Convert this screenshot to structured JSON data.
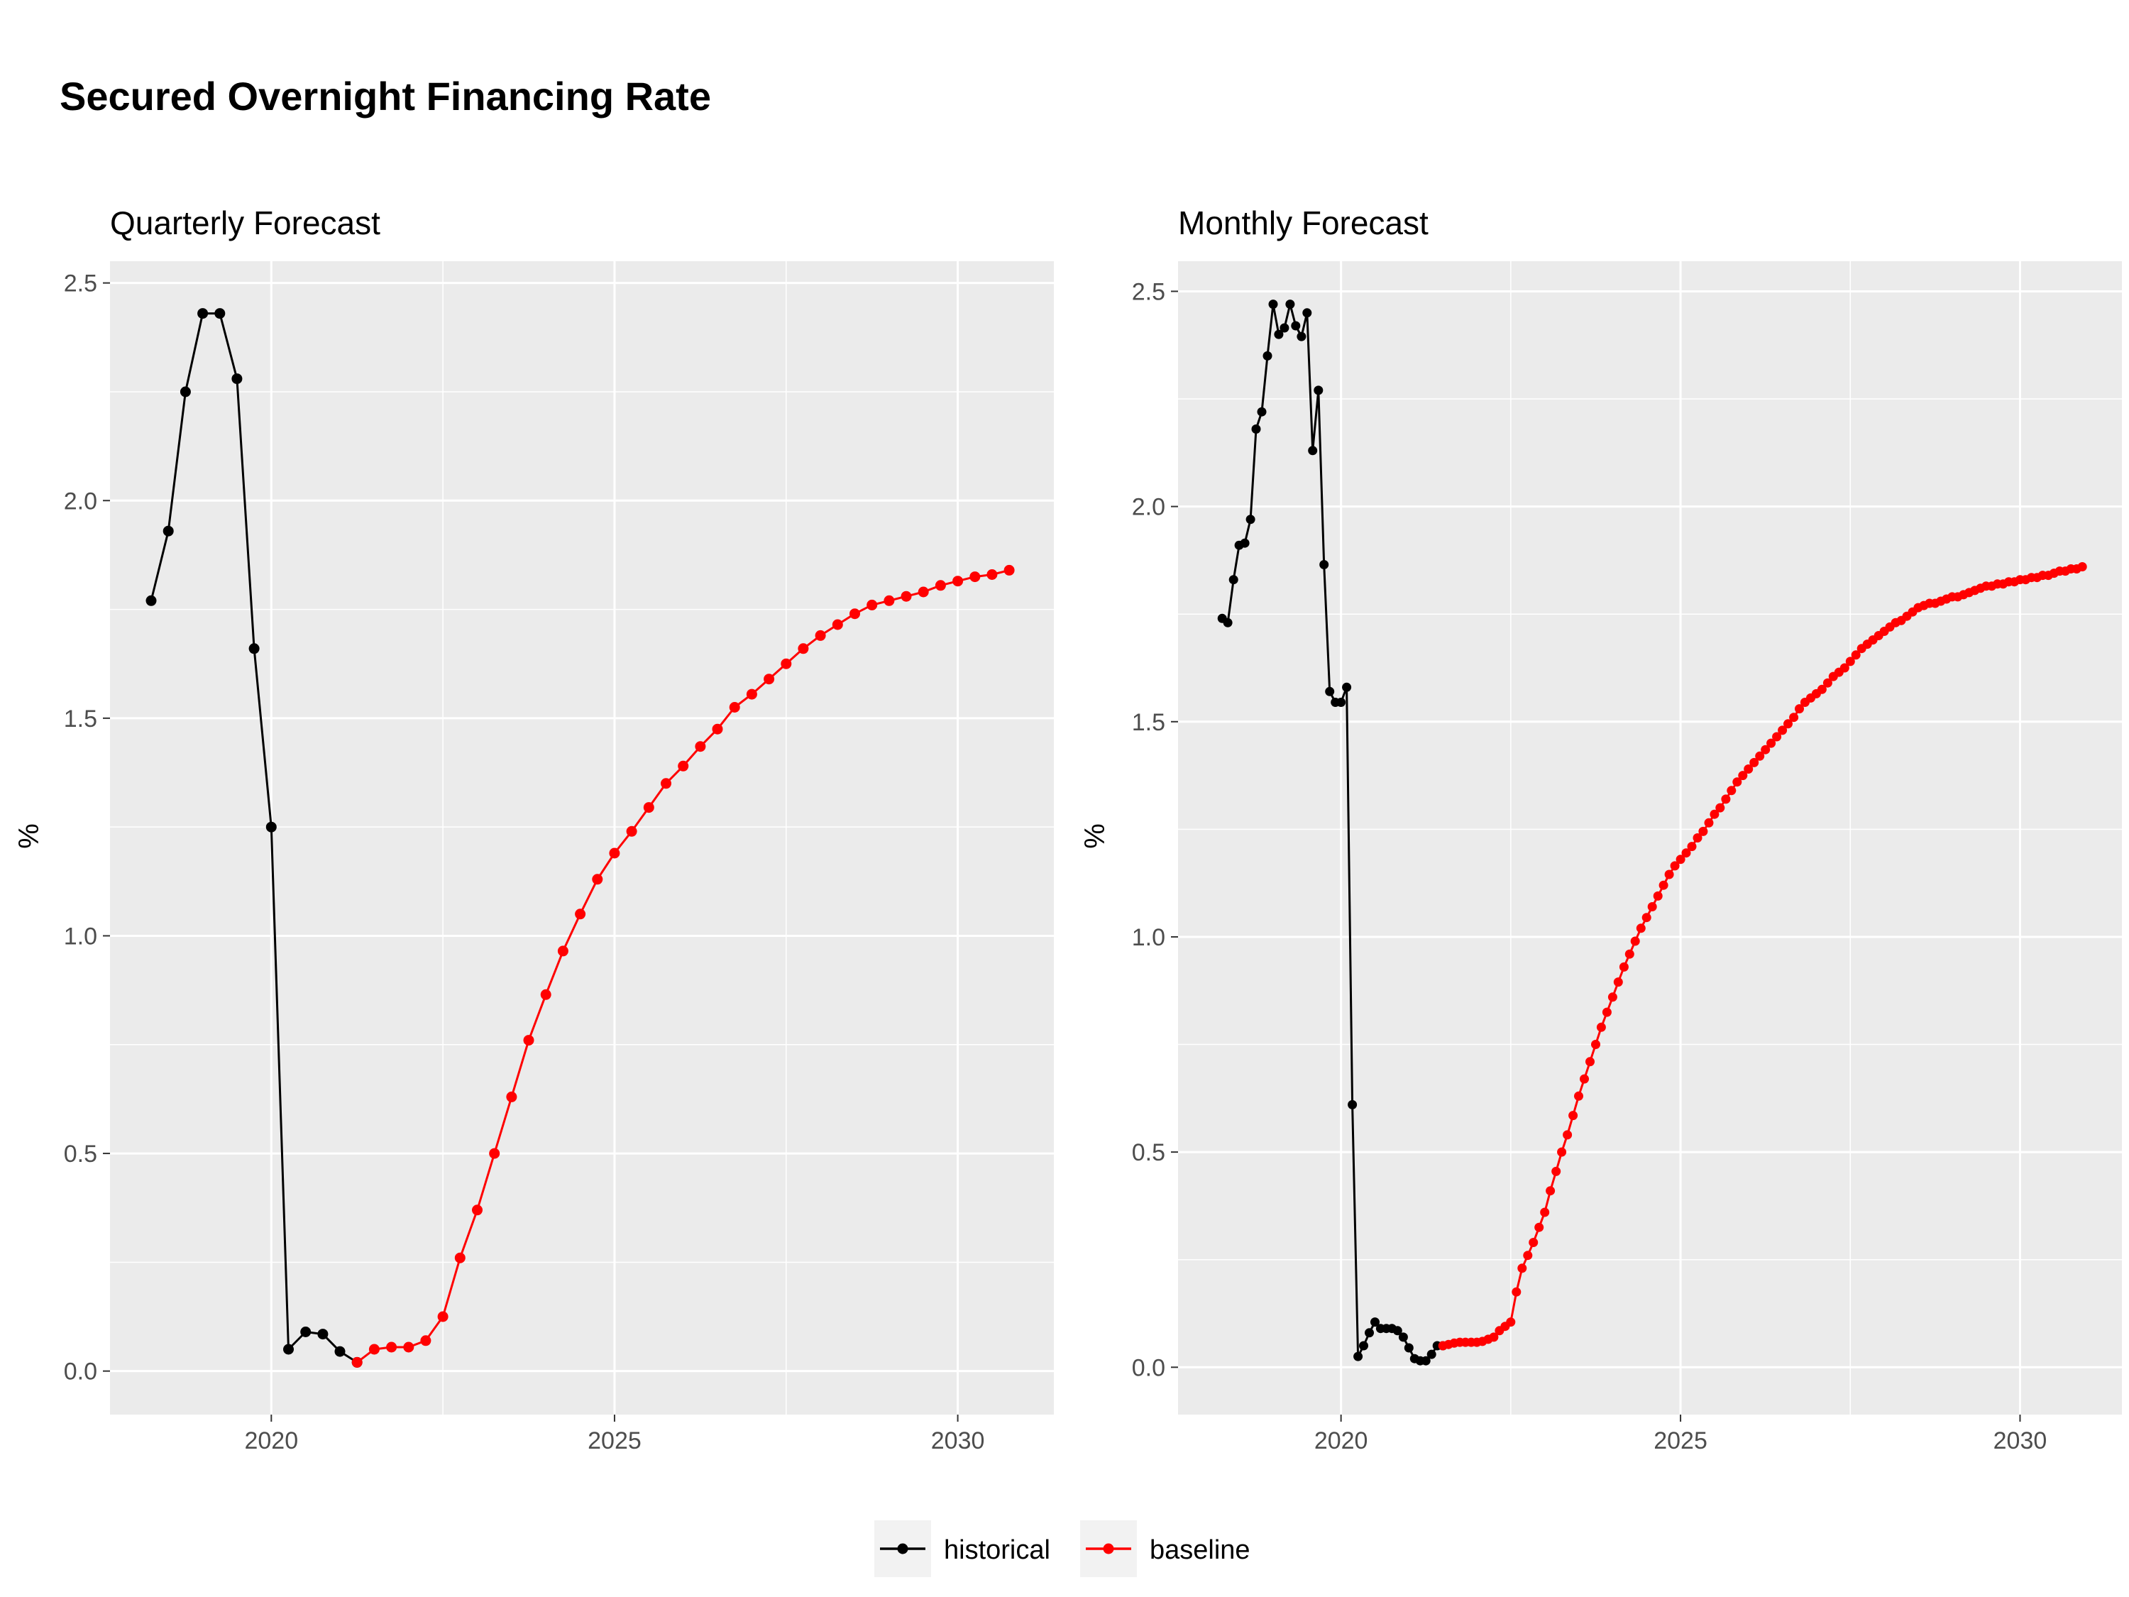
{
  "title": "Secured Overnight Financing Rate",
  "legend": [
    {
      "label": "historical",
      "color": "#000000"
    },
    {
      "label": "baseline",
      "color": "#ff0000"
    }
  ],
  "chart_data": [
    {
      "type": "line",
      "title": "Quarterly Forecast",
      "ylabel": "%",
      "xlabel": "",
      "xlim": [
        2017.65,
        2031.4
      ],
      "ylim": [
        -0.1,
        2.55
      ],
      "xticks": [
        2020,
        2025,
        2030
      ],
      "yticks": [
        0.0,
        0.5,
        1.0,
        1.5,
        2.0,
        2.5
      ],
      "ytick_labels": [
        "0.0",
        "0.5",
        "1.0",
        "1.5",
        "2.0",
        "2.5"
      ],
      "grid": true,
      "legend_position": "bottom",
      "series": [
        {
          "name": "historical",
          "color": "#000000",
          "x": [
            2018.25,
            2018.5,
            2018.75,
            2019.0,
            2019.25,
            2019.5,
            2019.75,
            2020.0,
            2020.25,
            2020.5,
            2020.75,
            2021.0,
            2021.25
          ],
          "y": [
            1.77,
            1.93,
            2.25,
            2.43,
            2.43,
            2.28,
            1.66,
            1.25,
            0.05,
            0.09,
            0.085,
            0.045,
            0.02
          ]
        },
        {
          "name": "baseline",
          "color": "#ff0000",
          "x": [
            2021.25,
            2021.5,
            2021.75,
            2022.0,
            2022.25,
            2022.5,
            2022.75,
            2023.0,
            2023.25,
            2023.5,
            2023.75,
            2024.0,
            2024.25,
            2024.5,
            2024.75,
            2025.0,
            2025.25,
            2025.5,
            2025.75,
            2026.0,
            2026.25,
            2026.5,
            2026.75,
            2027.0,
            2027.25,
            2027.5,
            2027.75,
            2028.0,
            2028.25,
            2028.5,
            2028.75,
            2029.0,
            2029.25,
            2029.5,
            2029.75,
            2030.0,
            2030.25,
            2030.5,
            2030.75
          ],
          "y": [
            0.02,
            0.05,
            0.055,
            0.055,
            0.07,
            0.125,
            0.26,
            0.37,
            0.5,
            0.63,
            0.76,
            0.865,
            0.965,
            1.05,
            1.13,
            1.19,
            1.24,
            1.295,
            1.35,
            1.39,
            1.435,
            1.475,
            1.525,
            1.555,
            1.59,
            1.625,
            1.66,
            1.69,
            1.715,
            1.74,
            1.76,
            1.77,
            1.78,
            1.79,
            1.805,
            1.815,
            1.825,
            1.83,
            1.84
          ]
        }
      ]
    },
    {
      "type": "line",
      "title": "Monthly Forecast",
      "ylabel": "%",
      "xlabel": "",
      "xlim": [
        2017.6,
        2031.5
      ],
      "ylim": [
        -0.11,
        2.57
      ],
      "xticks": [
        2020,
        2025,
        2030
      ],
      "yticks": [
        0.0,
        0.5,
        1.0,
        1.5,
        2.0,
        2.5
      ],
      "ytick_labels": [
        "0.0",
        "0.5",
        "1.0",
        "1.5",
        "2.0",
        "2.5"
      ],
      "grid": true,
      "legend_position": "bottom",
      "series": [
        {
          "name": "historical",
          "color": "#000000",
          "x": [
            2018.25,
            2018.333,
            2018.417,
            2018.5,
            2018.583,
            2018.667,
            2018.75,
            2018.833,
            2018.917,
            2019.0,
            2019.083,
            2019.167,
            2019.25,
            2019.333,
            2019.417,
            2019.5,
            2019.583,
            2019.667,
            2019.75,
            2019.833,
            2019.917,
            2020.0,
            2020.083,
            2020.167,
            2020.25,
            2020.333,
            2020.417,
            2020.5,
            2020.583,
            2020.667,
            2020.75,
            2020.833,
            2020.917,
            2021.0,
            2021.083,
            2021.167,
            2021.25,
            2021.333,
            2021.417,
            2021.5
          ],
          "y": [
            1.74,
            1.73,
            1.83,
            1.91,
            1.915,
            1.97,
            2.18,
            2.22,
            2.35,
            2.47,
            2.4,
            2.415,
            2.47,
            2.42,
            2.395,
            2.45,
            2.13,
            2.27,
            1.865,
            1.57,
            1.545,
            1.545,
            1.58,
            0.61,
            0.025,
            0.05,
            0.08,
            0.105,
            0.09,
            0.09,
            0.09,
            0.085,
            0.07,
            0.045,
            0.02,
            0.015,
            0.015,
            0.03,
            0.05,
            0.05
          ]
        },
        {
          "name": "baseline",
          "color": "#ff0000",
          "x": [
            2021.5,
            2021.583,
            2021.667,
            2021.75,
            2021.833,
            2021.917,
            2022.0,
            2022.083,
            2022.167,
            2022.25,
            2022.333,
            2022.417,
            2022.5,
            2022.583,
            2022.667,
            2022.75,
            2022.833,
            2022.917,
            2023.0,
            2023.083,
            2023.167,
            2023.25,
            2023.333,
            2023.417,
            2023.5,
            2023.583,
            2023.667,
            2023.75,
            2023.833,
            2023.917,
            2024.0,
            2024.083,
            2024.167,
            2024.25,
            2024.333,
            2024.417,
            2024.5,
            2024.583,
            2024.667,
            2024.75,
            2024.833,
            2024.917,
            2025.0,
            2025.083,
            2025.167,
            2025.25,
            2025.333,
            2025.417,
            2025.5,
            2025.583,
            2025.667,
            2025.75,
            2025.833,
            2025.917,
            2026.0,
            2026.083,
            2026.167,
            2026.25,
            2026.333,
            2026.417,
            2026.5,
            2026.583,
            2026.667,
            2026.75,
            2026.833,
            2026.917,
            2027.0,
            2027.083,
            2027.167,
            2027.25,
            2027.333,
            2027.417,
            2027.5,
            2027.583,
            2027.667,
            2027.75,
            2027.833,
            2027.917,
            2028.0,
            2028.083,
            2028.167,
            2028.25,
            2028.333,
            2028.417,
            2028.5,
            2028.583,
            2028.667,
            2028.75,
            2028.833,
            2028.917,
            2029.0,
            2029.083,
            2029.167,
            2029.25,
            2029.333,
            2029.417,
            2029.5,
            2029.583,
            2029.667,
            2029.75,
            2029.833,
            2029.917,
            2030.0,
            2030.083,
            2030.167,
            2030.25,
            2030.333,
            2030.417,
            2030.5,
            2030.583,
            2030.667,
            2030.75,
            2030.833,
            2030.917
          ],
          "y": [
            0.05,
            0.053,
            0.056,
            0.058,
            0.058,
            0.058,
            0.058,
            0.06,
            0.065,
            0.07,
            0.085,
            0.095,
            0.105,
            0.175,
            0.23,
            0.26,
            0.29,
            0.325,
            0.36,
            0.41,
            0.455,
            0.5,
            0.54,
            0.585,
            0.63,
            0.67,
            0.71,
            0.75,
            0.79,
            0.825,
            0.86,
            0.895,
            0.93,
            0.96,
            0.99,
            1.02,
            1.045,
            1.07,
            1.095,
            1.12,
            1.145,
            1.165,
            1.18,
            1.195,
            1.21,
            1.23,
            1.245,
            1.265,
            1.285,
            1.3,
            1.32,
            1.34,
            1.36,
            1.375,
            1.39,
            1.405,
            1.42,
            1.435,
            1.45,
            1.465,
            1.48,
            1.495,
            1.51,
            1.53,
            1.545,
            1.555,
            1.565,
            1.575,
            1.59,
            1.605,
            1.615,
            1.625,
            1.64,
            1.655,
            1.67,
            1.68,
            1.69,
            1.7,
            1.71,
            1.72,
            1.73,
            1.735,
            1.745,
            1.755,
            1.765,
            1.77,
            1.775,
            1.775,
            1.78,
            1.785,
            1.79,
            1.79,
            1.795,
            1.8,
            1.805,
            1.81,
            1.815,
            1.815,
            1.82,
            1.82,
            1.825,
            1.825,
            1.83,
            1.83,
            1.835,
            1.835,
            1.84,
            1.84,
            1.845,
            1.85,
            1.85,
            1.855,
            1.855,
            1.86
          ]
        }
      ]
    }
  ]
}
